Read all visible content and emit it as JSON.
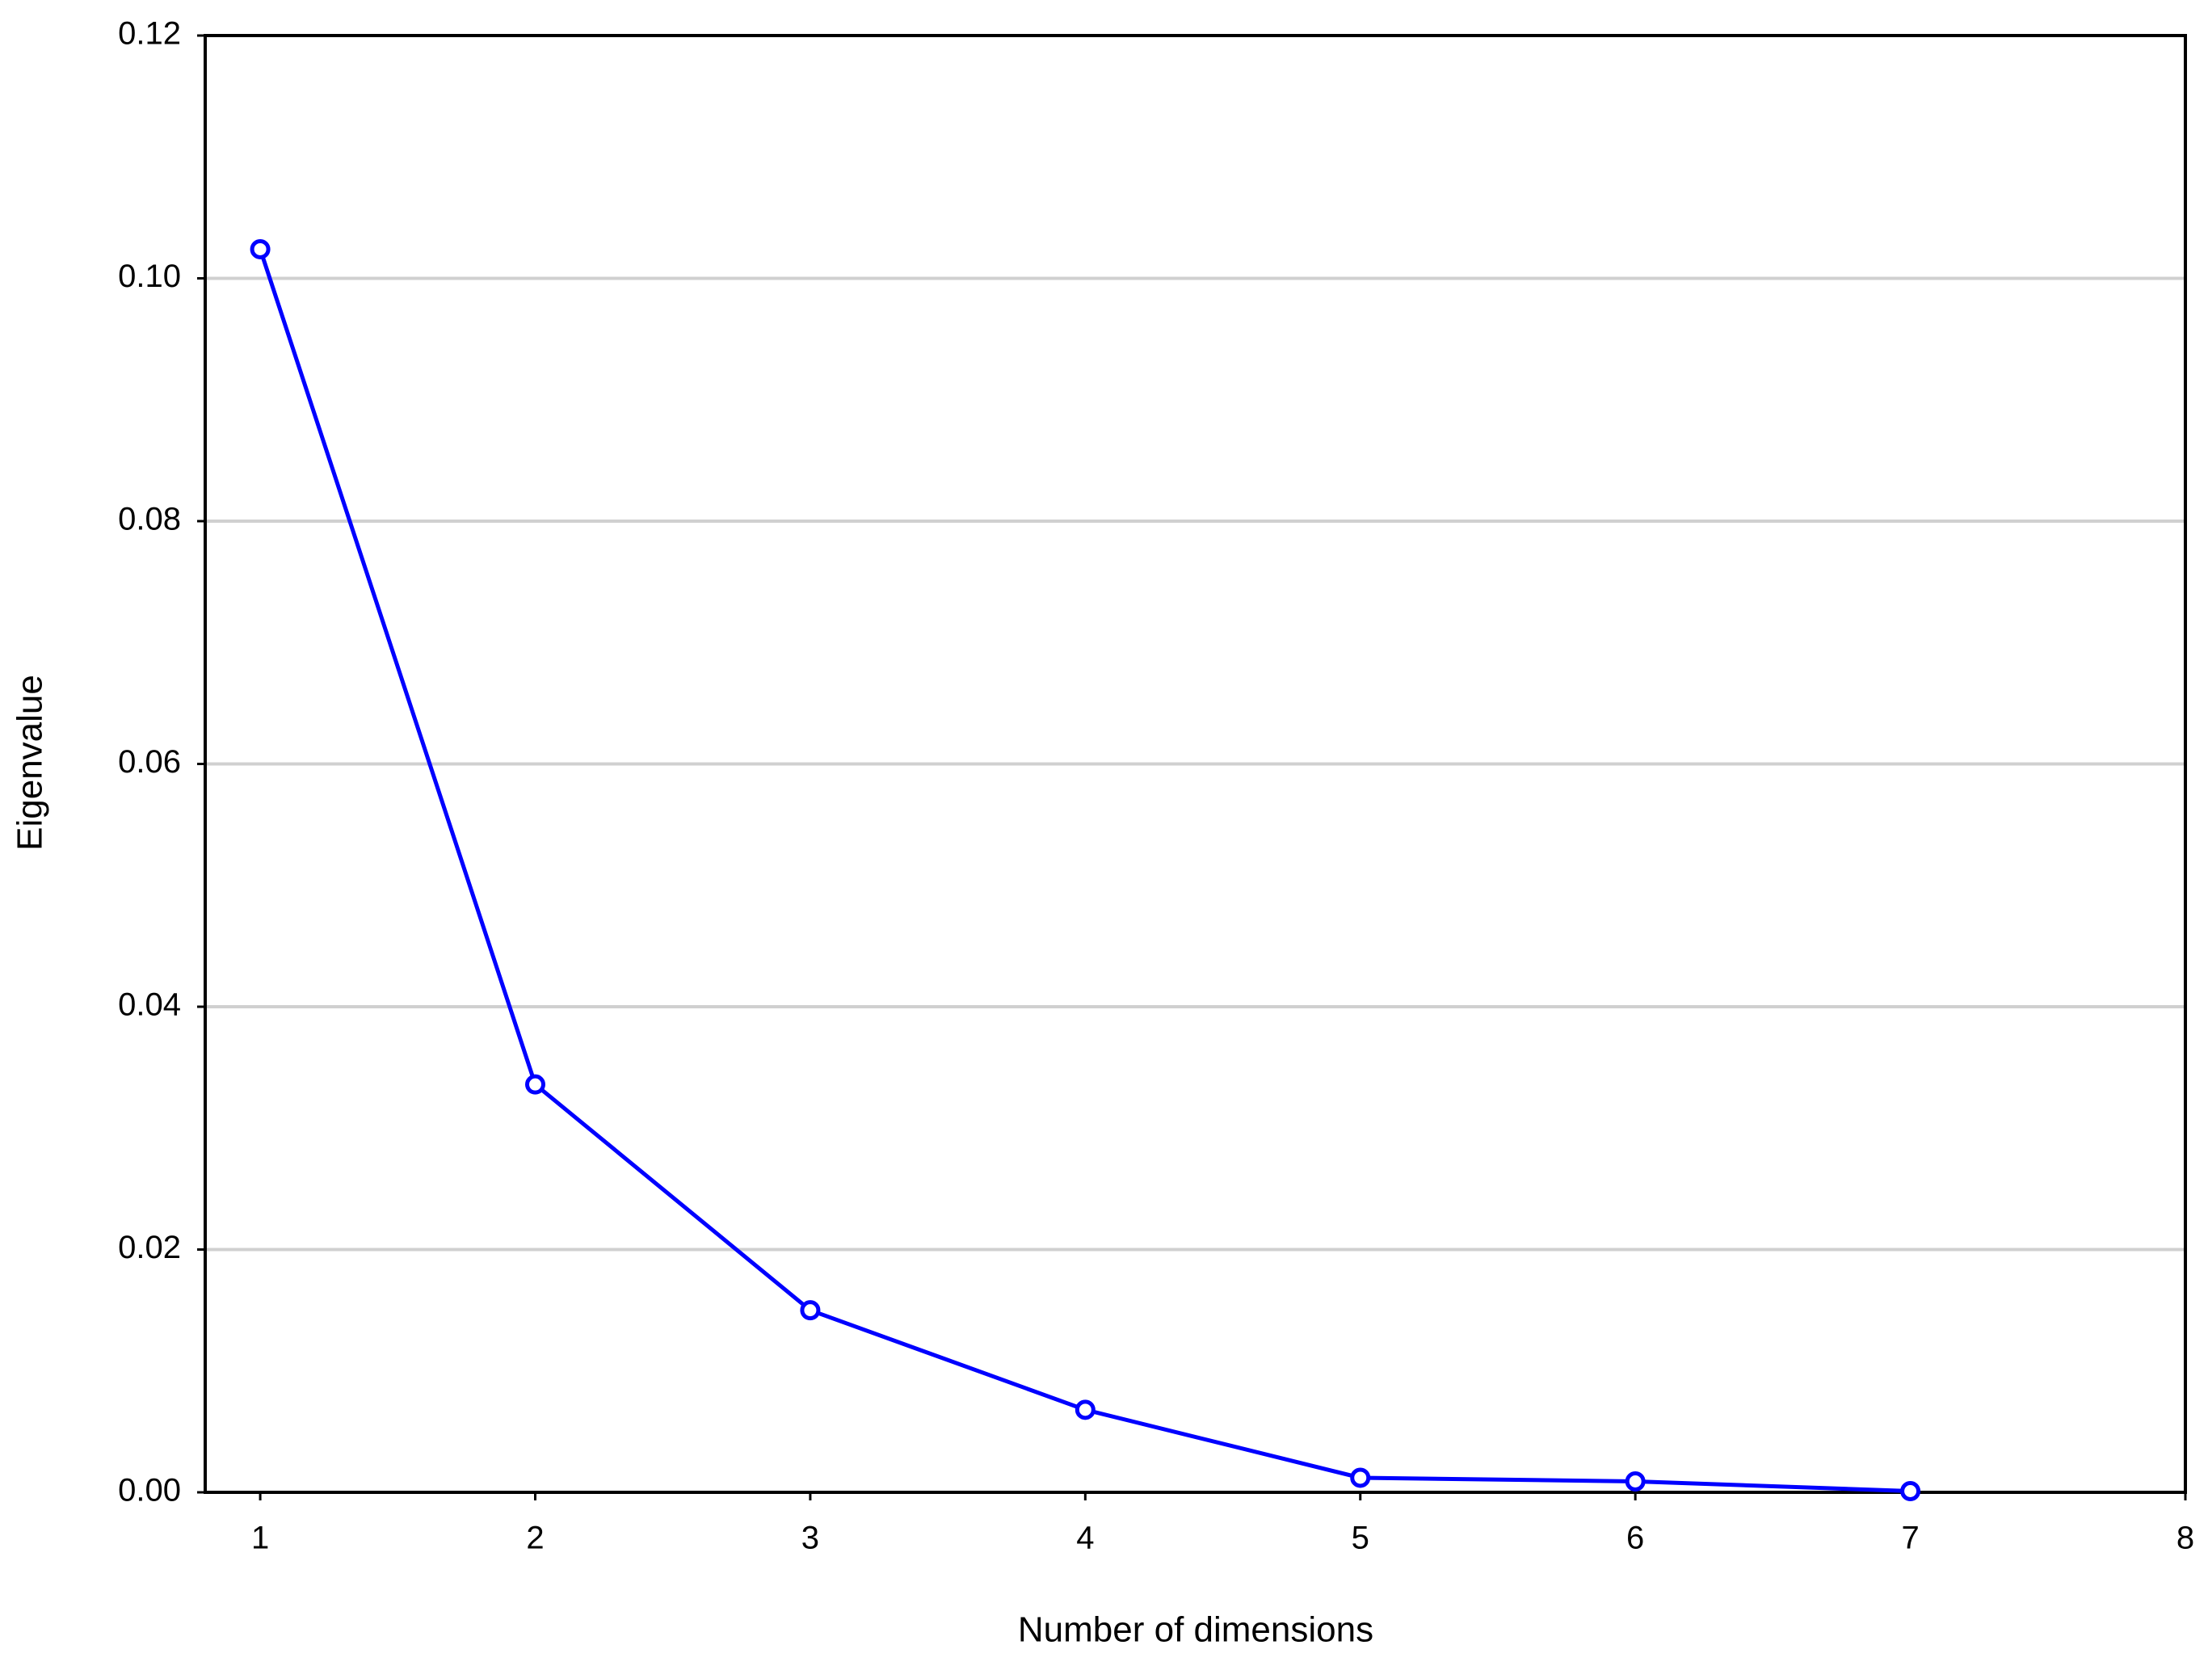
{
  "chart_data": {
    "type": "line",
    "x_label": "Number of dimensions",
    "y_label": "Eigenvalue",
    "x": [
      1,
      2,
      3,
      4,
      5,
      6,
      7
    ],
    "series": [
      {
        "color": "#0000ff",
        "values": [
          0.1024,
          0.0336,
          0.015,
          0.0068,
          0.0012,
          0.0009,
          0.0001
        ]
      }
    ],
    "xlim": [
      0.8,
      8
    ],
    "xticks": [
      1,
      2,
      3,
      4,
      5,
      6,
      7,
      8
    ],
    "ylim": [
      0,
      0.12
    ],
    "yticks": [
      {
        "value": 0,
        "label": "0.00"
      },
      0.02,
      0.04,
      0.06,
      0.08,
      {
        "value": 0.1,
        "label": "0.10"
      },
      0.12
    ],
    "grid": true
  }
}
